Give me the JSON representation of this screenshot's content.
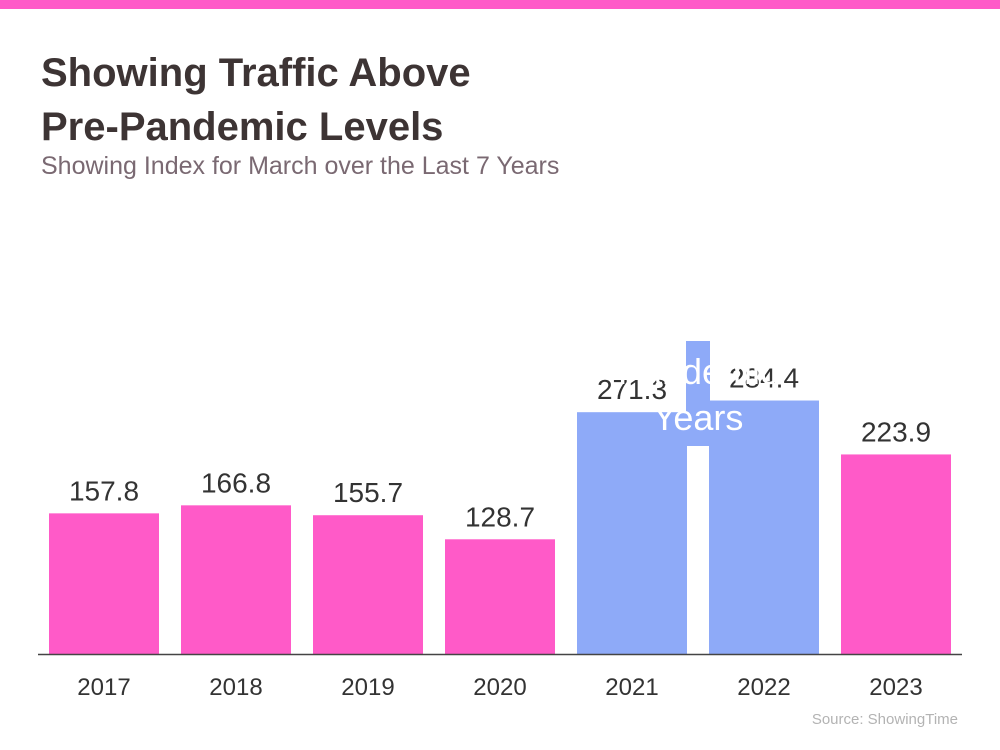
{
  "title_lines": [
    "Showing Traffic Above",
    "Pre-Pandemic Levels"
  ],
  "subtitle": "Showing Index for March over the Last 7 Years",
  "source": "Source: ShowingTime",
  "colors": {
    "top_bar": "#ff5ac8",
    "normal_bar": "#ff5ac8",
    "pandemic_bar": "#8eaaf8",
    "annotation_text": "#ffffff",
    "value_label": "#333333",
    "axis": "#444444"
  },
  "chart_data": {
    "type": "bar",
    "categories": [
      "2017",
      "2018",
      "2019",
      "2020",
      "2021",
      "2022",
      "2023"
    ],
    "values": [
      157.8,
      166.8,
      155.7,
      128.7,
      271.3,
      284.4,
      223.9
    ],
    "value_labels": [
      "157.8",
      "166.8",
      "155.7",
      "128.7",
      "271.3",
      "284.4",
      "223.9"
    ],
    "pandemic": [
      false,
      false,
      false,
      false,
      true,
      true,
      false
    ],
    "annotation": {
      "lines": [
        "Pandemic",
        "Years"
      ],
      "over_categories": [
        "2021",
        "2022"
      ]
    },
    "title": "Showing Traffic Above Pre-Pandemic Levels",
    "subtitle": "Showing Index for March over the Last 7 Years",
    "xlabel": "",
    "ylabel": "",
    "ylim": [
      0,
      300
    ],
    "grid": false,
    "legend": "none"
  }
}
